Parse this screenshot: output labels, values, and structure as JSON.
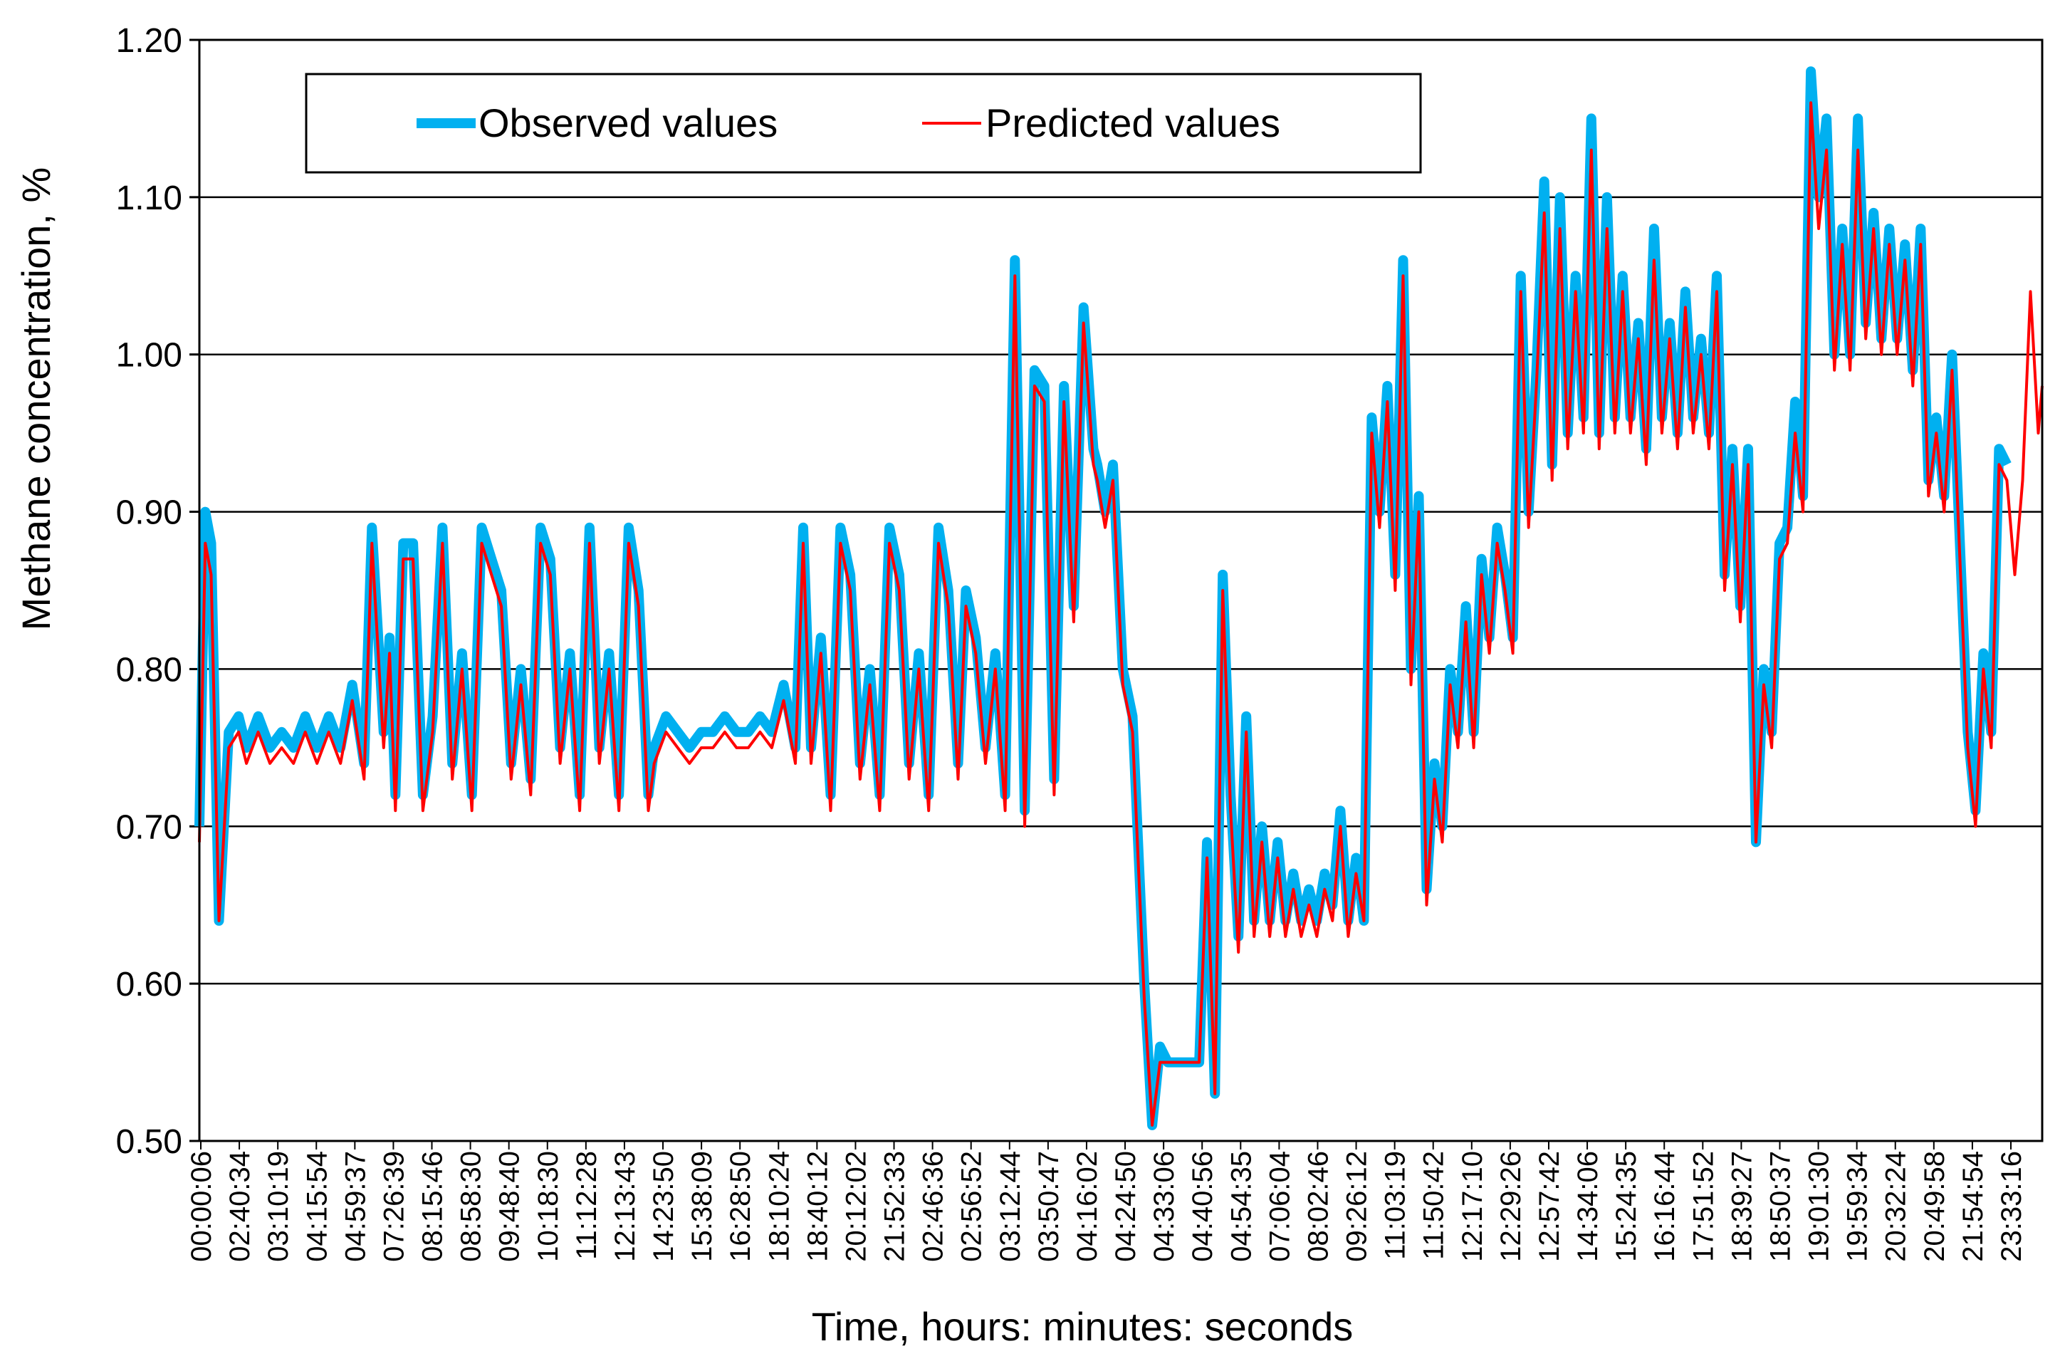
{
  "chart_data": {
    "type": "line",
    "title": "",
    "xlabel": "Time, hours: minutes: seconds",
    "ylabel": "Methane concentration,  %",
    "ylim": [
      0.5,
      1.2
    ],
    "yticks": [
      "0.50",
      "0.60",
      "0.70",
      "0.80",
      "0.90",
      "1.00",
      "1.10",
      "1.20"
    ],
    "grid": "horizontal",
    "legend_position": "top-left",
    "colors": {
      "observed": "#00b0f0",
      "predicted": "#ff0000"
    },
    "x_tick_labels": [
      "00:00:06",
      "02:40:34",
      "03:10:19",
      "04:15:54",
      "04:59:37",
      "07:26:39",
      "08:15:46",
      "08:58:30",
      "09:48:40",
      "10:18:30",
      "11:12:28",
      "12:13:43",
      "14:23:50",
      "15:38:09",
      "16:28:50",
      "18:10:24",
      "18:40:12",
      "20:12:02",
      "21:52:33",
      "02:46:36",
      "02:56:52",
      "03:12:44",
      "03:50:47",
      "04:16:02",
      "04:24:50",
      "04:33:06",
      "04:40:56",
      "04:54:35",
      "07:06:04",
      "08:02:46",
      "09:26:12",
      "11:03:19",
      "11:50:42",
      "12:17:10",
      "12:29:26",
      "12:57:42",
      "14:34:06",
      "15:24:35",
      "16:16:44",
      "17:51:52",
      "18:39:27",
      "18:50:37",
      "19:01:30",
      "19:59:34",
      "20:32:24",
      "20:49:58",
      "21:54:54",
      "23:33:16"
    ],
    "x_range": [
      0,
      47
    ],
    "series": [
      {
        "name": "Observed values",
        "x": [
          0,
          0.15,
          0.3,
          0.5,
          0.75,
          1.0,
          1.2,
          1.5,
          1.8,
          2.1,
          2.4,
          2.7,
          3.0,
          3.3,
          3.6,
          3.9,
          4.2,
          4.4,
          4.7,
          4.85,
          5.0,
          5.2,
          5.45,
          5.7,
          5.95,
          6.2,
          6.45,
          6.7,
          6.95,
          7.2,
          7.45,
          7.7,
          7.95,
          8.2,
          8.45,
          8.7,
          8.95,
          9.2,
          9.45,
          9.7,
          9.95,
          10.2,
          10.45,
          10.7,
          10.95,
          11.2,
          11.45,
          11.6,
          11.9,
          12.2,
          12.5,
          12.8,
          13.1,
          13.4,
          13.7,
          14.0,
          14.3,
          14.6,
          14.9,
          15.2,
          15.4,
          15.6,
          15.85,
          16.1,
          16.35,
          16.6,
          16.85,
          17.1,
          17.35,
          17.6,
          17.85,
          18.1,
          18.35,
          18.6,
          18.85,
          19.1,
          19.35,
          19.55,
          19.8,
          20.05,
          20.3,
          20.55,
          20.8,
          21.05,
          21.3,
          21.55,
          21.8,
          22.05,
          22.3,
          22.55,
          22.8,
          22.9,
          23.1,
          23.3,
          23.55,
          23.8,
          24.1,
          24.3,
          24.5,
          24.7,
          24.9,
          25.1,
          25.3,
          25.5,
          25.7,
          25.9,
          26.1,
          26.3,
          26.5,
          26.7,
          26.9,
          27.1,
          27.3,
          27.5,
          27.7,
          27.9,
          28.1,
          28.3,
          28.5,
          28.7,
          28.9,
          29.1,
          29.3,
          29.5,
          29.7,
          29.9,
          30.1,
          30.3,
          30.5,
          30.7,
          30.9,
          31.1,
          31.3,
          31.5,
          31.7,
          31.9,
          32.1,
          32.3,
          32.5,
          32.7,
          32.9,
          33.1,
          33.3,
          33.5,
          33.7,
          33.9,
          34.1,
          34.3,
          34.5,
          34.7,
          34.9,
          35.1,
          35.3,
          35.5,
          35.7,
          35.9,
          36.1,
          36.3,
          36.5,
          36.7,
          36.9,
          37.1,
          37.3,
          37.5,
          37.7,
          37.9,
          38.1,
          38.3,
          38.5,
          38.7,
          38.9,
          39.1,
          39.3,
          39.5,
          39.7,
          39.9,
          40.1,
          40.3,
          40.5,
          40.7,
          40.9,
          41.1,
          41.3,
          41.5,
          41.7,
          41.9,
          42.1,
          42.3,
          42.5,
          42.7,
          42.9,
          43.1,
          43.3,
          43.5,
          43.7,
          43.9,
          44.1,
          44.3,
          44.5,
          44.7,
          44.9,
          45.1,
          45.3,
          45.5,
          45.7,
          45.9,
          46.1
        ],
        "values": [
          0.7,
          0.9,
          0.88,
          0.64,
          0.76,
          0.77,
          0.75,
          0.77,
          0.75,
          0.76,
          0.75,
          0.77,
          0.75,
          0.77,
          0.75,
          0.79,
          0.74,
          0.89,
          0.76,
          0.82,
          0.72,
          0.88,
          0.88,
          0.72,
          0.77,
          0.89,
          0.74,
          0.81,
          0.72,
          0.89,
          0.87,
          0.85,
          0.74,
          0.8,
          0.73,
          0.89,
          0.87,
          0.75,
          0.81,
          0.72,
          0.89,
          0.75,
          0.81,
          0.72,
          0.89,
          0.85,
          0.72,
          0.75,
          0.77,
          0.76,
          0.75,
          0.76,
          0.76,
          0.77,
          0.76,
          0.76,
          0.77,
          0.76,
          0.79,
          0.75,
          0.89,
          0.75,
          0.82,
          0.72,
          0.89,
          0.86,
          0.74,
          0.8,
          0.72,
          0.89,
          0.86,
          0.74,
          0.81,
          0.72,
          0.89,
          0.85,
          0.74,
          0.85,
          0.82,
          0.75,
          0.81,
          0.72,
          1.06,
          0.71,
          0.99,
          0.98,
          0.73,
          0.98,
          0.84,
          1.03,
          0.94,
          0.93,
          0.9,
          0.93,
          0.8,
          0.77,
          0.6,
          0.51,
          0.56,
          0.55,
          0.55,
          0.55,
          0.55,
          0.55,
          0.69,
          0.53,
          0.86,
          0.72,
          0.63,
          0.77,
          0.64,
          0.7,
          0.64,
          0.69,
          0.64,
          0.67,
          0.64,
          0.66,
          0.64,
          0.67,
          0.65,
          0.71,
          0.64,
          0.68,
          0.64,
          0.96,
          0.9,
          0.98,
          0.86,
          1.06,
          0.8,
          0.91,
          0.66,
          0.74,
          0.7,
          0.8,
          0.76,
          0.84,
          0.76,
          0.87,
          0.82,
          0.89,
          0.86,
          0.82,
          1.05,
          0.9,
          0.99,
          1.11,
          0.93,
          1.1,
          0.95,
          1.05,
          0.96,
          1.15,
          0.95,
          1.1,
          0.96,
          1.05,
          0.96,
          1.02,
          0.94,
          1.08,
          0.96,
          1.02,
          0.95,
          1.04,
          0.96,
          1.01,
          0.95,
          1.05,
          0.86,
          0.94,
          0.84,
          0.94,
          0.69,
          0.8,
          0.76,
          0.88,
          0.89,
          0.97,
          0.91,
          1.18,
          1.1,
          1.15,
          1.0,
          1.08,
          1.0,
          1.15,
          1.02,
          1.09,
          1.01,
          1.08,
          1.01,
          1.07,
          0.99,
          1.08,
          0.92,
          0.96,
          0.91,
          1.0,
          0.88,
          0.76,
          0.71,
          0.81,
          0.76,
          0.94,
          0.93
        ]
      },
      {
        "name": "Predicted values",
        "x": [
          0,
          0.15,
          0.3,
          0.5,
          0.75,
          1.0,
          1.2,
          1.5,
          1.8,
          2.1,
          2.4,
          2.7,
          3.0,
          3.3,
          3.6,
          3.9,
          4.2,
          4.4,
          4.7,
          4.85,
          5.0,
          5.2,
          5.45,
          5.7,
          5.95,
          6.2,
          6.45,
          6.7,
          6.95,
          7.2,
          7.45,
          7.7,
          7.95,
          8.2,
          8.45,
          8.7,
          8.95,
          9.2,
          9.45,
          9.7,
          9.95,
          10.2,
          10.45,
          10.7,
          10.95,
          11.2,
          11.45,
          11.6,
          11.9,
          12.2,
          12.5,
          12.8,
          13.1,
          13.4,
          13.7,
          14.0,
          14.3,
          14.6,
          14.9,
          15.2,
          15.4,
          15.6,
          15.85,
          16.1,
          16.35,
          16.6,
          16.85,
          17.1,
          17.35,
          17.6,
          17.85,
          18.1,
          18.35,
          18.6,
          18.85,
          19.1,
          19.35,
          19.55,
          19.8,
          20.05,
          20.3,
          20.55,
          20.8,
          21.05,
          21.3,
          21.55,
          21.8,
          22.05,
          22.3,
          22.55,
          22.8,
          22.9,
          23.1,
          23.3,
          23.55,
          23.8,
          24.1,
          24.3,
          24.5,
          24.7,
          24.9,
          25.1,
          25.3,
          25.5,
          25.7,
          25.9,
          26.1,
          26.3,
          26.5,
          26.7,
          26.9,
          27.1,
          27.3,
          27.5,
          27.7,
          27.9,
          28.1,
          28.3,
          28.5,
          28.7,
          28.9,
          29.1,
          29.3,
          29.5,
          29.7,
          29.9,
          30.1,
          30.3,
          30.5,
          30.7,
          30.9,
          31.1,
          31.3,
          31.5,
          31.7,
          31.9,
          32.1,
          32.3,
          32.5,
          32.7,
          32.9,
          33.1,
          33.3,
          33.5,
          33.7,
          33.9,
          34.1,
          34.3,
          34.5,
          34.7,
          34.9,
          35.1,
          35.3,
          35.5,
          35.7,
          35.9,
          36.1,
          36.3,
          36.5,
          36.7,
          36.9,
          37.1,
          37.3,
          37.5,
          37.7,
          37.9,
          38.1,
          38.3,
          38.5,
          38.7,
          38.9,
          39.1,
          39.3,
          39.5,
          39.7,
          39.9,
          40.1,
          40.3,
          40.5,
          40.7,
          40.9,
          41.1,
          41.3,
          41.5,
          41.7,
          41.9,
          42.1,
          42.3,
          42.5,
          42.7,
          42.9,
          43.1,
          43.3,
          43.5,
          43.7,
          43.9,
          44.1,
          44.3,
          44.5,
          44.7,
          44.9,
          45.1,
          45.3,
          45.5,
          45.7,
          45.9,
          46.1,
          46.3,
          46.5,
          46.7,
          46.9,
          47.0
        ],
        "values": [
          0.69,
          0.88,
          0.86,
          0.64,
          0.75,
          0.76,
          0.74,
          0.76,
          0.74,
          0.75,
          0.74,
          0.76,
          0.74,
          0.76,
          0.74,
          0.78,
          0.73,
          0.88,
          0.75,
          0.81,
          0.71,
          0.87,
          0.87,
          0.71,
          0.76,
          0.88,
          0.73,
          0.8,
          0.71,
          0.88,
          0.86,
          0.84,
          0.73,
          0.79,
          0.72,
          0.88,
          0.86,
          0.74,
          0.8,
          0.71,
          0.88,
          0.74,
          0.8,
          0.71,
          0.88,
          0.84,
          0.71,
          0.74,
          0.76,
          0.75,
          0.74,
          0.75,
          0.75,
          0.76,
          0.75,
          0.75,
          0.76,
          0.75,
          0.78,
          0.74,
          0.88,
          0.74,
          0.81,
          0.71,
          0.88,
          0.85,
          0.73,
          0.79,
          0.71,
          0.88,
          0.85,
          0.73,
          0.8,
          0.71,
          0.88,
          0.84,
          0.73,
          0.84,
          0.81,
          0.74,
          0.8,
          0.71,
          1.05,
          0.7,
          0.98,
          0.97,
          0.72,
          0.97,
          0.83,
          1.02,
          0.93,
          0.92,
          0.89,
          0.92,
          0.79,
          0.76,
          0.59,
          0.51,
          0.55,
          0.55,
          0.55,
          0.55,
          0.55,
          0.55,
          0.68,
          0.53,
          0.85,
          0.71,
          0.62,
          0.76,
          0.63,
          0.69,
          0.63,
          0.68,
          0.63,
          0.66,
          0.63,
          0.65,
          0.63,
          0.66,
          0.64,
          0.7,
          0.63,
          0.67,
          0.64,
          0.95,
          0.89,
          0.97,
          0.85,
          1.05,
          0.79,
          0.9,
          0.65,
          0.73,
          0.69,
          0.79,
          0.75,
          0.83,
          0.75,
          0.86,
          0.81,
          0.88,
          0.85,
          0.81,
          1.04,
          0.89,
          0.98,
          1.09,
          0.92,
          1.08,
          0.94,
          1.04,
          0.95,
          1.13,
          0.94,
          1.08,
          0.95,
          1.04,
          0.95,
          1.01,
          0.93,
          1.06,
          0.95,
          1.01,
          0.94,
          1.03,
          0.95,
          1.0,
          0.94,
          1.04,
          0.85,
          0.93,
          0.83,
          0.93,
          0.69,
          0.79,
          0.75,
          0.87,
          0.88,
          0.95,
          0.9,
          1.16,
          1.08,
          1.13,
          0.99,
          1.07,
          0.99,
          1.13,
          1.01,
          1.08,
          1.0,
          1.07,
          1.0,
          1.06,
          0.98,
          1.07,
          0.91,
          0.95,
          0.9,
          0.99,
          0.87,
          0.75,
          0.7,
          0.8,
          0.75,
          0.93,
          0.92,
          0.86,
          0.92,
          1.04,
          0.95,
          0.98
        ]
      }
    ]
  }
}
